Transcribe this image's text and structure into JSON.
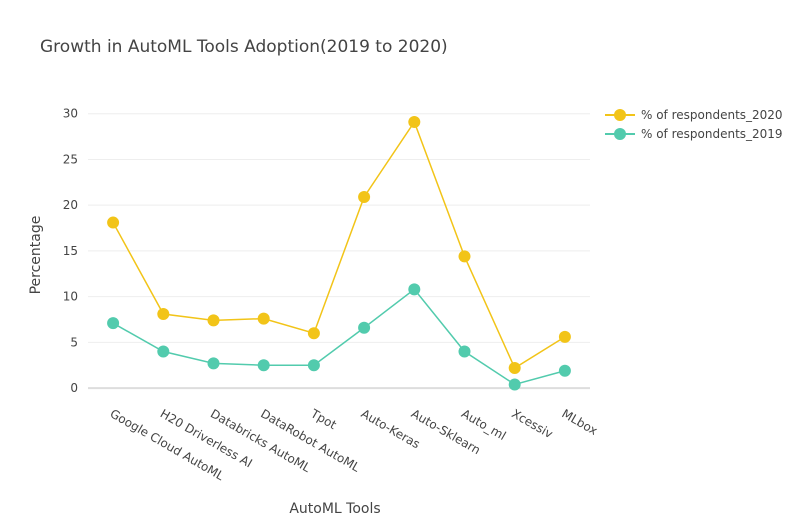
{
  "chart_data": {
    "type": "line",
    "title": "Growth in AutoML Tools Adoption(2019 to 2020)",
    "xlabel": "AutoML Tools",
    "ylabel": "Percentage",
    "ylim": [
      -1.3,
      31.5
    ],
    "yticks": [
      0,
      5,
      10,
      15,
      20,
      25,
      30
    ],
    "grid": true,
    "legend": "top-right",
    "categories": [
      "Google Cloud AutoML",
      "H20 Driverless AI",
      "Databricks AutoML",
      "DataRobot AutoML",
      "Tpot",
      "Auto-Keras",
      "Auto-Sklearn",
      "Auto_ml",
      "Xcessiv",
      "MLbox"
    ],
    "series": [
      {
        "name": "% of respondents_2020",
        "color": "#f2c418",
        "values": [
          18.1,
          8.1,
          7.4,
          7.6,
          6.0,
          20.9,
          29.1,
          14.4,
          2.2,
          5.6
        ]
      },
      {
        "name": "% of respondents_2019",
        "color": "#52cbad",
        "values": [
          7.1,
          4.0,
          2.7,
          2.5,
          2.5,
          6.6,
          10.8,
          4.0,
          0.4,
          1.9
        ]
      }
    ]
  }
}
